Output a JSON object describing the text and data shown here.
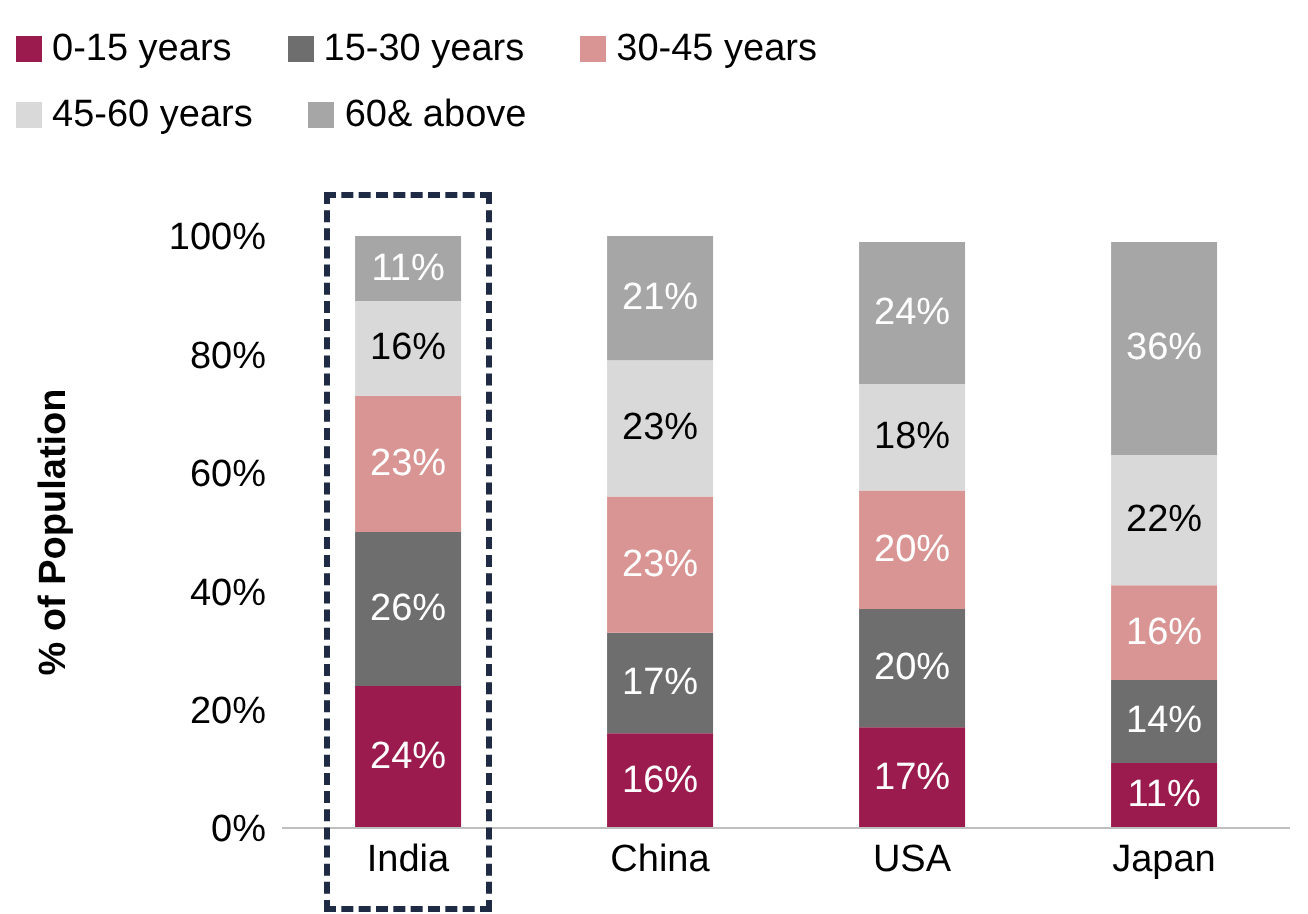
{
  "chart_data": {
    "type": "bar",
    "stacked": true,
    "ylabel": "% of Population",
    "categories": [
      "India",
      "China",
      "USA",
      "Japan"
    ],
    "series": [
      {
        "name": "0-15 years",
        "color": "#9b1b4e",
        "values": [
          24,
          16,
          17,
          11
        ],
        "value_labels": [
          "24%",
          "16%",
          "17%",
          "11%"
        ]
      },
      {
        "name": "15-30 years",
        "color": "#6e6e6e",
        "values": [
          26,
          17,
          20,
          14
        ],
        "value_labels": [
          "26%",
          "17%",
          "20%",
          "14%"
        ]
      },
      {
        "name": "30-45 years",
        "color": "#d99594",
        "values": [
          23,
          23,
          20,
          16
        ],
        "value_labels": [
          "23%",
          "23%",
          "20%",
          "16%"
        ]
      },
      {
        "name": "45-60 years",
        "color": "#d9d9d9",
        "values": [
          16,
          23,
          18,
          22
        ],
        "value_labels": [
          "16%",
          "23%",
          "18%",
          "22%"
        ]
      },
      {
        "name": "60& above",
        "color": "#a6a6a6",
        "values": [
          11,
          21,
          24,
          36
        ],
        "value_labels": [
          "11%",
          "21%",
          "24%",
          "36%"
        ]
      }
    ],
    "ylim": [
      0,
      100
    ],
    "yticks": [
      {
        "value": 0,
        "label": "0%"
      },
      {
        "value": 20,
        "label": "20%"
      },
      {
        "value": 40,
        "label": "40%"
      },
      {
        "value": 60,
        "label": "60%"
      },
      {
        "value": 80,
        "label": "80%"
      },
      {
        "value": 100,
        "label": "100%"
      }
    ],
    "grid": false,
    "legend": "top left"
  }
}
